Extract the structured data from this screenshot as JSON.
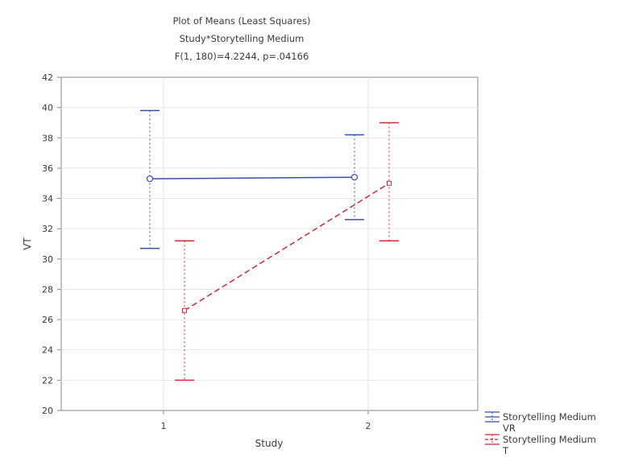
{
  "chart_data": {
    "type": "line",
    "title": "Plot of Means (Least Squares)",
    "subtitle_lines": [
      "Study*Storytelling Medium",
      "F(1, 180)=4.2244, p=.04166"
    ],
    "xlabel": "Study",
    "ylabel": "VT",
    "categories": [
      "1",
      "2"
    ],
    "yticks": [
      "42",
      "40",
      "38",
      "36",
      "34",
      "32",
      "30",
      "28",
      "26",
      "24",
      "22",
      "20"
    ],
    "ylim": [
      20,
      42
    ],
    "grid": true,
    "legend_position": "bottom-right",
    "series": [
      {
        "name": "Storytelling Medium",
        "level": "VR",
        "color": "#3a4fa8",
        "dash": "solid",
        "values": [
          35.3,
          35.4
        ],
        "lower": [
          30.7,
          32.6
        ],
        "upper": [
          39.8,
          38.2
        ]
      },
      {
        "name": "Storytelling Medium",
        "level": "T",
        "color": "#d0283c",
        "dash": "dashed",
        "values": [
          26.6,
          35.0
        ],
        "lower": [
          22.0,
          31.2
        ],
        "upper": [
          31.2,
          39.0
        ]
      }
    ]
  }
}
